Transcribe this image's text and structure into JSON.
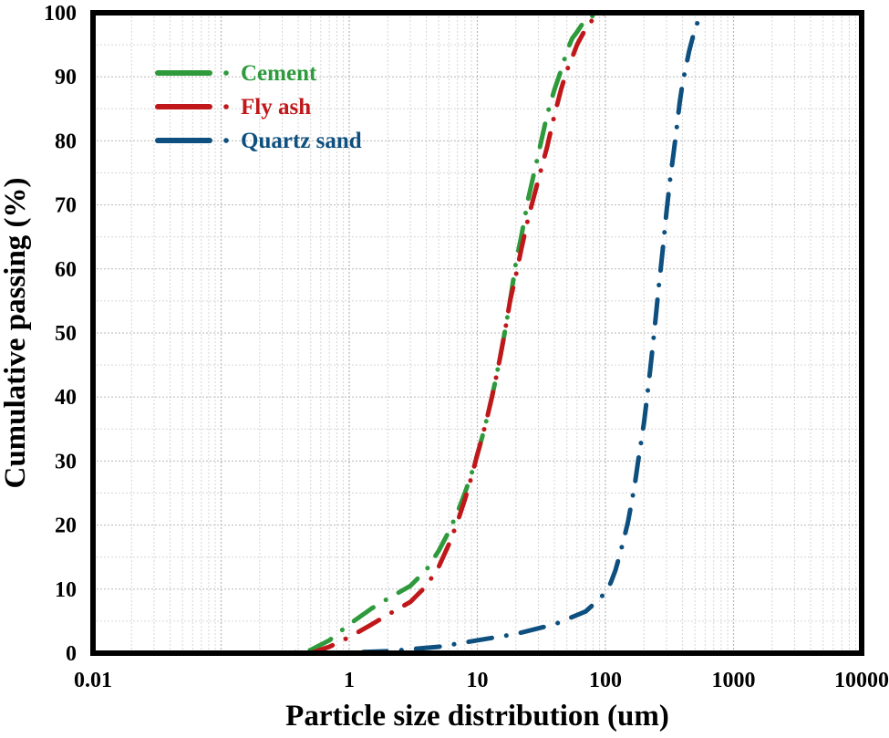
{
  "chart_data": {
    "type": "line",
    "title": "",
    "xlabel": "Particle size distribution (um)",
    "ylabel": "Cumulative passing (%)",
    "x_scale": "log",
    "xlim": [
      0.01,
      10000
    ],
    "ylim": [
      0,
      100
    ],
    "x_ticks": [
      0.01,
      1,
      10,
      100,
      1000,
      10000
    ],
    "x_tick_labels": [
      "0.01",
      "1",
      "10",
      "100",
      "1000",
      "10000"
    ],
    "y_ticks": [
      0,
      10,
      20,
      30,
      40,
      50,
      60,
      70,
      80,
      90,
      100
    ],
    "y_tick_labels": [
      "0",
      "10",
      "20",
      "30",
      "40",
      "50",
      "60",
      "70",
      "80",
      "90",
      "100"
    ],
    "grid": true,
    "legend_position": "top-left",
    "series": [
      {
        "name": "Cement",
        "color": "#2e9a3c",
        "x": [
          0.011,
          0.1,
          0.2,
          0.35,
          0.5,
          0.7,
          1,
          1.5,
          2,
          3,
          4,
          5,
          6,
          7,
          8,
          9,
          10,
          11,
          12,
          13,
          14,
          15,
          16,
          17,
          18,
          19,
          20,
          22,
          25,
          30,
          35,
          40,
          45,
          50,
          55,
          60,
          70,
          90,
          150,
          250
        ],
        "y": [
          0,
          0,
          0,
          0,
          0.5,
          2,
          4.5,
          7,
          8.5,
          10.5,
          13,
          16,
          19,
          22,
          25,
          28,
          31,
          34,
          37,
          40,
          43,
          46,
          49,
          52,
          55,
          58,
          61,
          65,
          71,
          78,
          84,
          88,
          91,
          94,
          96,
          97,
          99,
          100,
          100,
          100
        ]
      },
      {
        "name": "Fly ash",
        "color": "#c0181a",
        "x": [
          0.011,
          0.1,
          0.2,
          0.35,
          0.5,
          0.7,
          1,
          1.5,
          2,
          3,
          4,
          5,
          6,
          7,
          8,
          9,
          10,
          11,
          12,
          13,
          14,
          15,
          16,
          17,
          18,
          20,
          22,
          25,
          30,
          35,
          40,
          45,
          50,
          55,
          60,
          70,
          80,
          100,
          200,
          300
        ],
        "y": [
          0,
          0,
          0,
          0,
          0,
          1,
          2.5,
          4.5,
          6,
          8,
          10.5,
          13.5,
          17,
          20.5,
          24,
          27.5,
          31,
          34,
          37,
          40,
          43,
          46,
          49,
          52,
          55,
          59,
          63,
          68,
          74,
          79,
          84,
          88,
          91,
          93,
          95,
          97.5,
          99,
          100,
          100,
          100
        ]
      },
      {
        "name": "Quartz sand",
        "color": "#0d4f7e",
        "x": [
          0.011,
          0.1,
          0.5,
          1,
          2,
          5,
          10,
          20,
          40,
          70,
          90,
          100,
          110,
          120,
          130,
          140,
          150,
          160,
          170,
          180,
          190,
          200,
          210,
          220,
          230,
          240,
          250,
          260,
          270,
          280,
          290,
          300,
          320,
          340,
          360,
          380,
          400,
          450,
          500,
          550,
          600,
          700,
          1000,
          10000
        ],
        "y": [
          0,
          0,
          0,
          0.1,
          0.3,
          1,
          2,
          3,
          4.5,
          6.5,
          8.5,
          9.5,
          11,
          13,
          15.5,
          18,
          20.5,
          23.5,
          26.5,
          30,
          33,
          36,
          39.5,
          43,
          46.5,
          50,
          53.5,
          57,
          60,
          63,
          66,
          69,
          74,
          78,
          82,
          86,
          89,
          94,
          97.5,
          99.5,
          100,
          100,
          100,
          100
        ]
      }
    ]
  }
}
